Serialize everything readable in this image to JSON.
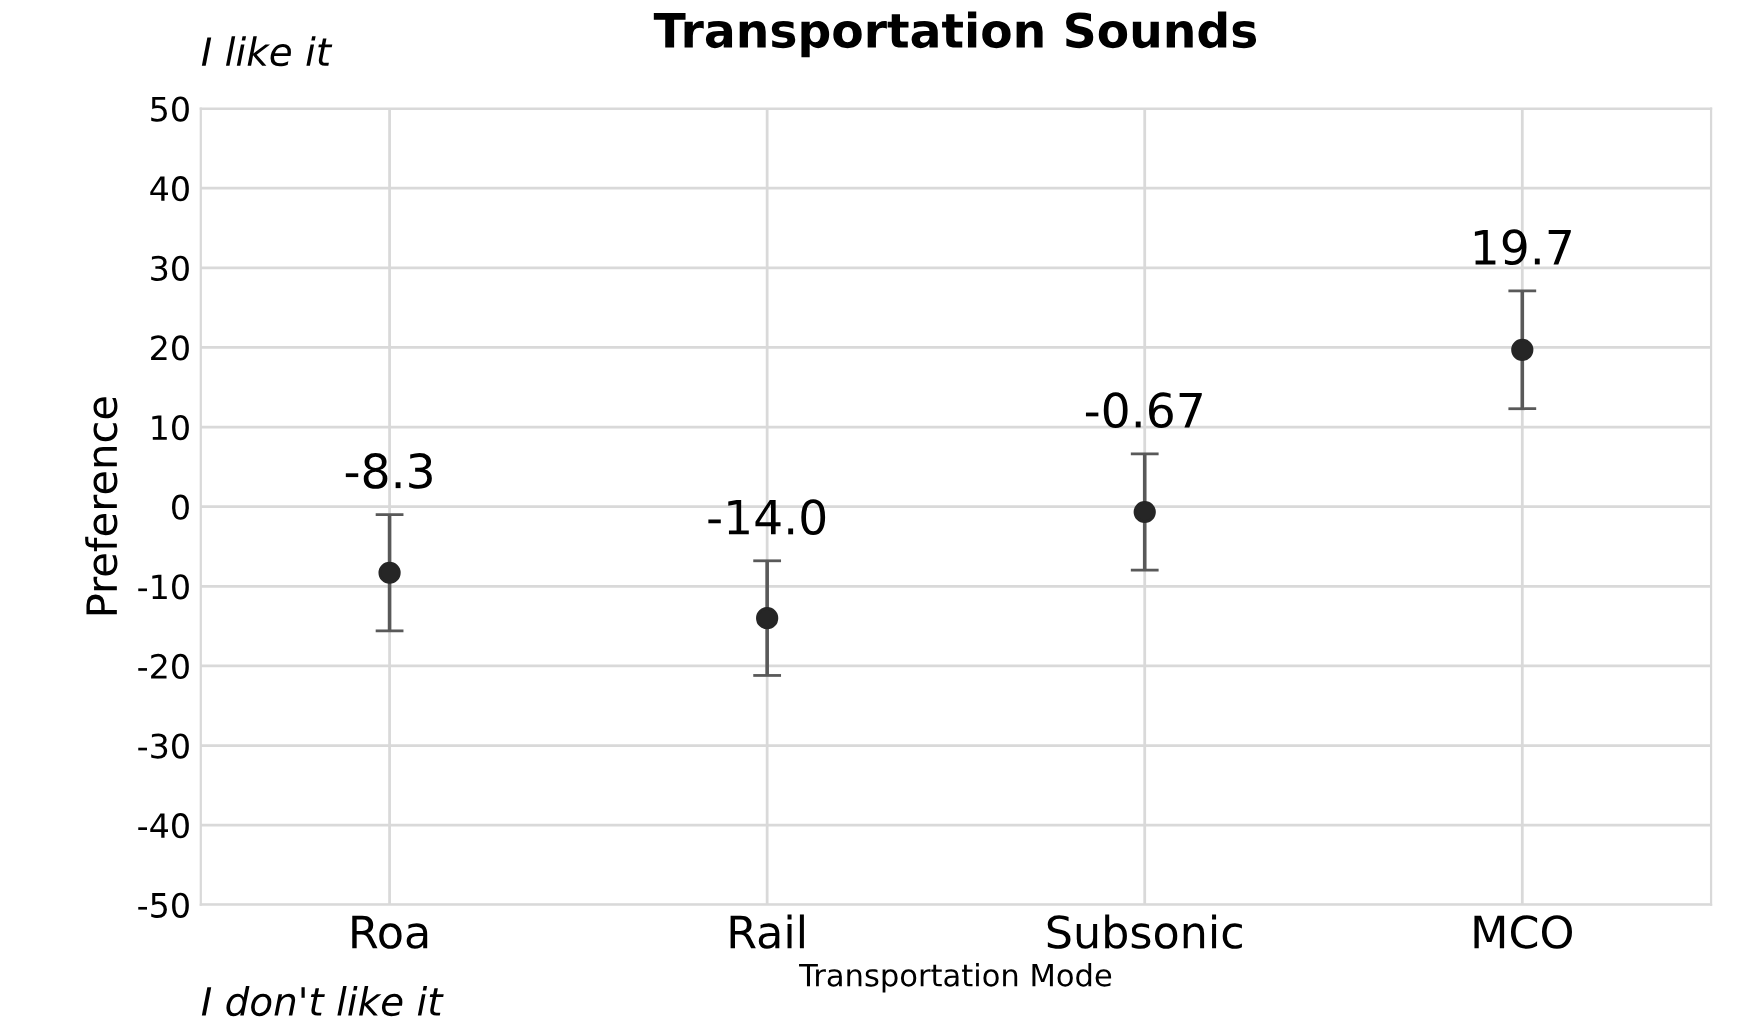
{
  "chart_data": {
    "type": "scatter",
    "title": "Transportation Sounds",
    "xlabel": "Transportation Mode",
    "ylabel": "Preference",
    "categories": [
      "Roa",
      "Rail",
      "Subsonic",
      "MCO"
    ],
    "series": [
      {
        "color": "#262626",
        "values": [
          -8.3,
          -14.0,
          -0.67,
          19.7
        ],
        "errors": [
          7.3,
          7.2,
          7.3,
          7.4
        ],
        "value_labels": [
          "-8.3",
          "-14.0",
          "-0.67",
          "19.7"
        ]
      }
    ],
    "ylim": [
      -50,
      50
    ],
    "yticks": [
      -50,
      -40,
      -30,
      -20,
      -10,
      0,
      10,
      20,
      30,
      40,
      50
    ],
    "grid": true,
    "marker": "circle",
    "annotations": [
      "I like it",
      "I don't like it"
    ]
  }
}
